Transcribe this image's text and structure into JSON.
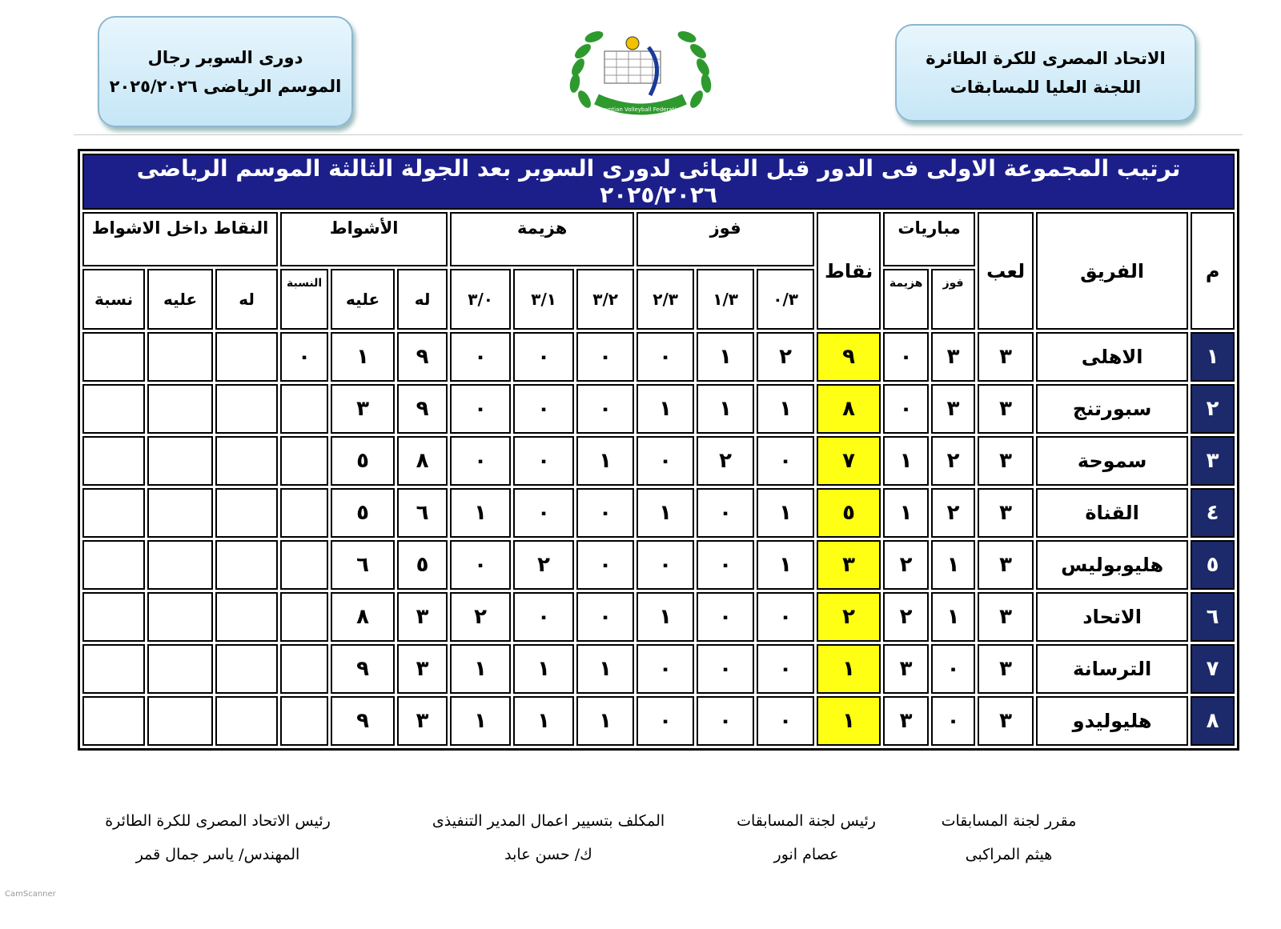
{
  "header": {
    "federation": [
      "الاتحاد المصرى للكرة الطائرة",
      "اللجنة العليا للمسابقات"
    ],
    "league": [
      "دورى السوبر رجال",
      "الموسم الرياضى ٢٠٢٥/٢٠٢٦"
    ],
    "logo_caption": "Egyptian Volleyball Federation"
  },
  "table": {
    "title": "ترتيب المجموعة الاولى فى الدور قبل النهائى لدورى السوبر بعد الجولة الثالثة الموسم الرياضى ٢٠٢٥/٢٠٢٦",
    "head": [
      {
        "label": "م"
      },
      {
        "label": "الفريق"
      },
      {
        "label": "لعب"
      },
      {
        "label": "مباريات",
        "sub": [
          "فوز",
          "هزيمة"
        ]
      },
      {
        "label": "نقاط"
      },
      {
        "label": "فوز",
        "sub": [
          "٠/٣",
          "١/٣",
          "٢/٣"
        ]
      },
      {
        "label": "هزيمة",
        "sub": [
          "٣/٢",
          "٣/١",
          "٣/٠"
        ]
      },
      {
        "label": "الأشواط",
        "sub": [
          "له",
          "عليه",
          "النسبة"
        ]
      },
      {
        "label": "النقاط داخل الاشواط",
        "sub": [
          "له",
          "عليه",
          "نسبة"
        ]
      }
    ],
    "rows": [
      [
        "١",
        "الاهلى",
        "٣",
        "٣",
        "٠",
        "٩",
        "٢",
        "١",
        "٠",
        "٠",
        "٠",
        "٠",
        "٩",
        "١",
        "٠"
      ],
      [
        "٢",
        "سبورتنج",
        "٣",
        "٣",
        "٠",
        "٨",
        "١",
        "١",
        "١",
        "٠",
        "٠",
        "٠",
        "٩",
        "٣"
      ],
      [
        "٣",
        "سموحة",
        "٣",
        "٢",
        "١",
        "٧",
        "٠",
        "٢",
        "٠",
        "١",
        "٠",
        "٠",
        "٨",
        "٥"
      ],
      [
        "٤",
        "القناة",
        "٣",
        "٢",
        "١",
        "٥",
        "١",
        "٠",
        "١",
        "٠",
        "٠",
        "١",
        "٦",
        "٥"
      ],
      [
        "٥",
        "هليوبوليس",
        "٣",
        "١",
        "٢",
        "٣",
        "١",
        "٠",
        "٠",
        "٠",
        "٢",
        "٠",
        "٥",
        "٦"
      ],
      [
        "٦",
        "الاتحاد",
        "٣",
        "١",
        "٢",
        "٢",
        "٠",
        "٠",
        "١",
        "٠",
        "٠",
        "٢",
        "٣",
        "٨"
      ],
      [
        "٧",
        "الترسانة",
        "٣",
        "٠",
        "٣",
        "١",
        "٠",
        "٠",
        "٠",
        "١",
        "١",
        "١",
        "٣",
        "٩"
      ],
      [
        "٨",
        "هليوليدو",
        "٣",
        "٠",
        "٣",
        "١",
        "٠",
        "٠",
        "٠",
        "١",
        "١",
        "١",
        "٣",
        "٩"
      ]
    ]
  },
  "signatures": [
    {
      "title": "مقرر لجنة المسابقات",
      "name": "هيثم المراكبى"
    },
    {
      "title": "رئيس لجنة المسابقات",
      "name": "عصام انور"
    },
    {
      "title": "المكلف بتسيير اعمال المدير التنفيذى",
      "name": "ك/ حسن عابد"
    },
    {
      "title": "رئيس الاتحاد المصرى للكرة الطائرة",
      "name": "المهندس/ ياسر جمال قمر"
    }
  ],
  "watermark": "CamScanner"
}
